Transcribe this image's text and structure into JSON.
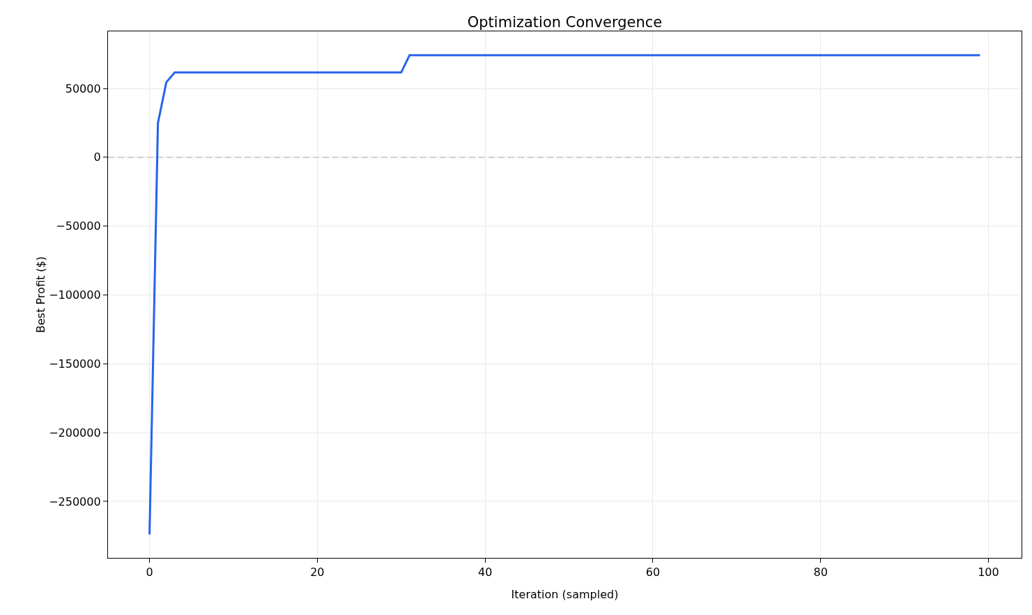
{
  "chart_data": {
    "type": "line",
    "title": "Optimization Convergence",
    "xlabel": "Iteration (sampled)",
    "ylabel": "Best Profit ($)",
    "x": [
      0,
      1,
      2,
      3,
      30,
      31,
      99
    ],
    "series": [
      {
        "color": "#2563eb",
        "values": [
          -274000,
          24700,
          54500,
          61600,
          61600,
          74200,
          74200
        ]
      }
    ],
    "xlim": [
      -4.95,
      103.95
    ],
    "xticks": [
      0,
      20,
      40,
      60,
      80,
      100
    ],
    "ylim": [
      -291000,
      91500
    ],
    "yticks": [
      {
        "value": -250000,
        "label": "−250000"
      },
      {
        "value": -200000,
        "label": "−200000"
      },
      {
        "value": -150000,
        "label": "−150000"
      },
      {
        "value": -100000,
        "label": "−100000"
      },
      {
        "value": -50000,
        "label": "−50000"
      },
      0,
      50000
    ],
    "ref_lines": [
      {
        "axis": "y",
        "value": 0,
        "color": "#b3b3b3",
        "line_style": "dashed"
      }
    ],
    "grid": true,
    "line_style": "solid"
  }
}
